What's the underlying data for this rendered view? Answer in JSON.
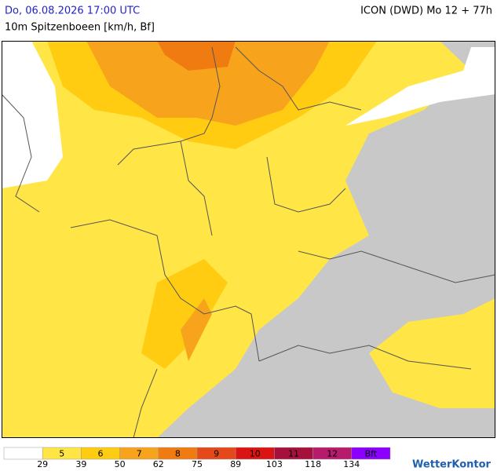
{
  "header": {
    "timestamp": "Do, 06.08.2026 17:00 UTC",
    "model": "ICON (DWD) Mo 12 + 77h",
    "parameter": "10m Spitzenboeen [km/h, Bf]"
  },
  "legend": {
    "colors": [
      "#ffffff",
      "#ffe545",
      "#ffcc11",
      "#f7a41c",
      "#f07b10",
      "#e5491a",
      "#dc1313",
      "#a5103c",
      "#b81a6c",
      "#8b00ff"
    ],
    "labels": [
      "5",
      "6",
      "7",
      "8",
      "9",
      "10",
      "11",
      "12",
      "Bft"
    ],
    "thresholds": [
      29,
      39,
      50,
      62,
      75,
      89,
      103,
      118,
      134
    ]
  },
  "brand": "WetterKontor"
}
